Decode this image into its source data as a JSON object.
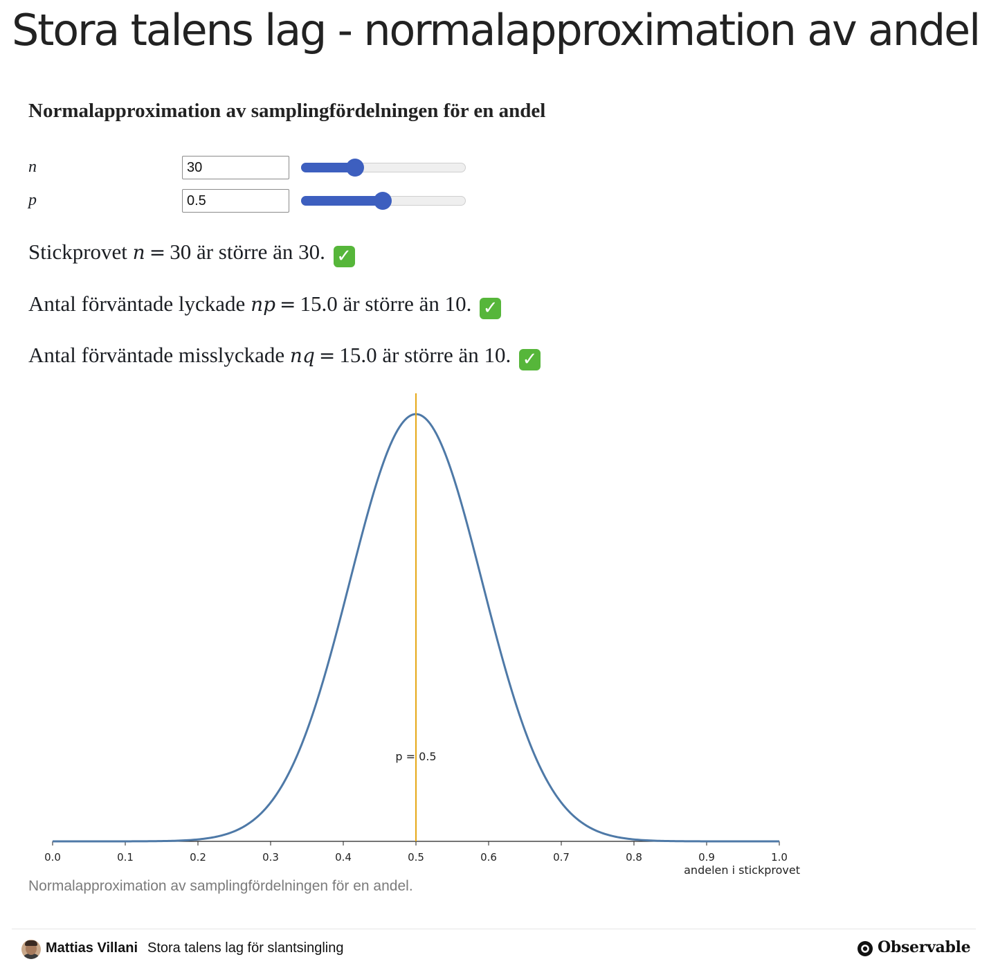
{
  "page": {
    "title": "Stora talens lag - normalapproximation av andel",
    "section_heading": "Normalapproximation av samplingfördelningen för en andel"
  },
  "controls": {
    "n": {
      "label": "n",
      "value": "30",
      "fraction": 0.33,
      "accent": "#3d5fbf"
    },
    "p": {
      "label": "p",
      "value": "0.5",
      "fraction": 0.5,
      "accent": "#3d5fbf"
    }
  },
  "checks": [
    {
      "prefix": "Stickprovet ",
      "var": "n",
      "value": "30",
      "suffix": " är större än 30.",
      "icon": "check-mark-icon"
    },
    {
      "prefix": "Antal förväntade lyckade ",
      "var": "np",
      "value": "15.0",
      "suffix": " är större än 10.",
      "icon": "check-mark-icon"
    },
    {
      "prefix": "Antal förväntade misslyckade ",
      "var": "nq",
      "value": "15.0",
      "suffix": " är större än 10.",
      "icon": "check-mark-icon"
    }
  ],
  "chart_data": {
    "type": "line",
    "series": [
      {
        "name": "",
        "kind": "normal-density",
        "mean": 0.5,
        "sd": 0.0913,
        "color": "#4e79a7"
      }
    ],
    "reference_line": {
      "x": 0.5,
      "label": "p = 0.5",
      "color": "#e6a817"
    },
    "xlim": [
      0.0,
      1.0
    ],
    "xticks": [
      "0.0",
      "0.1",
      "0.2",
      "0.3",
      "0.4",
      "0.5",
      "0.6",
      "0.7",
      "0.8",
      "0.9",
      "1.0"
    ],
    "xlabel": "andelen i stickprovet",
    "ylabel": "",
    "grid": false
  },
  "caption": "Normalapproximation av samplingfördelningen för en andel.",
  "footer": {
    "author": "Mattias Villani",
    "notebook": "Stora talens lag för slantsingling",
    "brand": "Observable"
  }
}
